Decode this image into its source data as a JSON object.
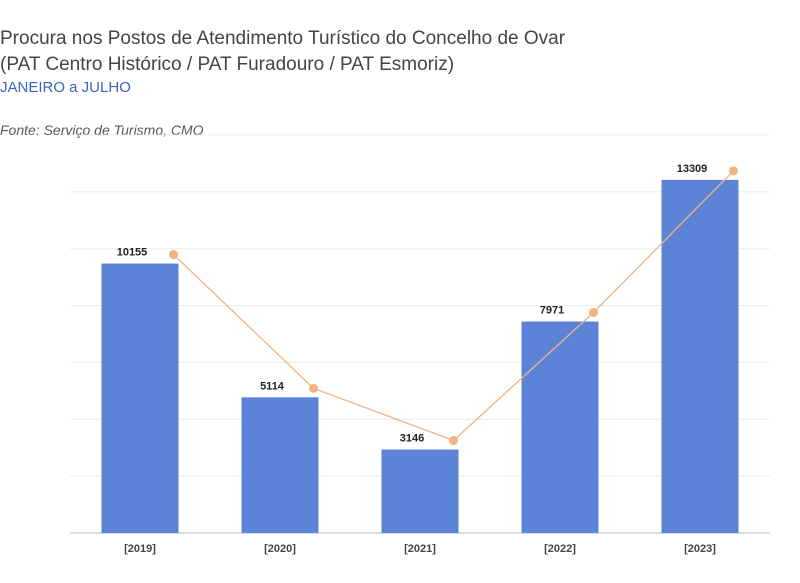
{
  "chart_data": {
    "type": "bar",
    "title": "Procura nos Postos de Atendimento Turístico do Concelho de Ovar",
    "title_line2": "(PAT Centro Histórico / PAT Furadouro / PAT Esmoriz)",
    "subtitle": "JANEIRO a JULHO",
    "source": "Fonte: Serviço de Turismo, CMO",
    "categories": [
      "[2019]",
      "[2020]",
      "[2021]",
      "[2022]",
      "[2023]"
    ],
    "series": [
      {
        "values": [
          10155,
          5114,
          3146,
          7971,
          13309
        ],
        "color": "#5b84d9"
      },
      {
        "values": [
          10155,
          5114,
          3146,
          7971,
          13309
        ],
        "color": "#f4b183",
        "style": "line-markers"
      }
    ],
    "ylim": [
      0,
      15000
    ],
    "grid": true,
    "legend": "none"
  }
}
